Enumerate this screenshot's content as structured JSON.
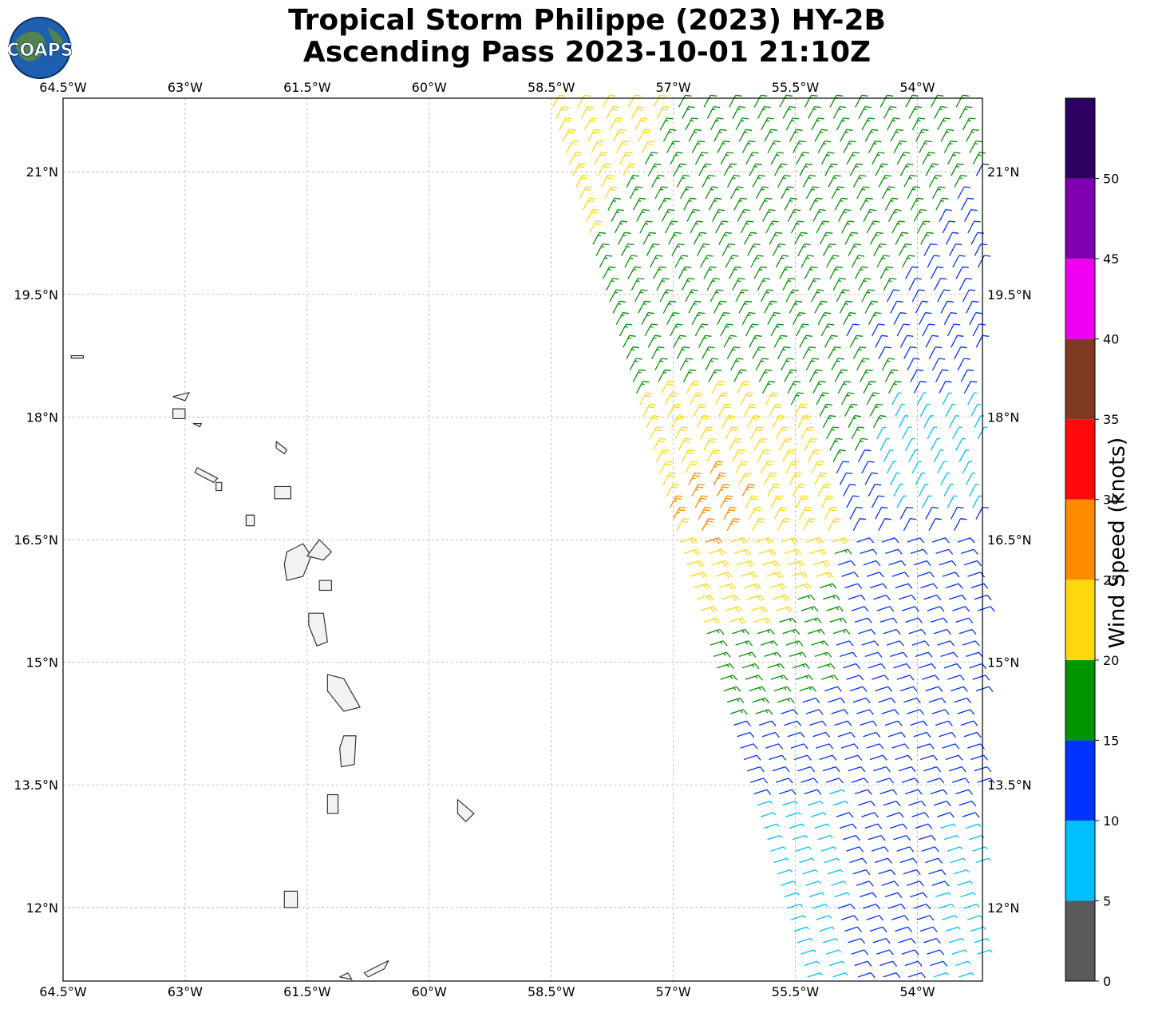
{
  "title": {
    "line1": "Tropical Storm Philippe (2023) HY-2B",
    "line2": "Ascending Pass 2023-10-01 21:10Z"
  },
  "logo": {
    "text": "COAPS",
    "icon": "globe-logo-icon"
  },
  "map": {
    "lon_range": [
      -64.5,
      -53.2
    ],
    "lat_range": [
      11.1,
      21.9
    ],
    "lon_ticks": [
      {
        "value": -64.5,
        "label": "64.5°W"
      },
      {
        "value": -63.0,
        "label": "63°W"
      },
      {
        "value": -61.5,
        "label": "61.5°W"
      },
      {
        "value": -60.0,
        "label": "60°W"
      },
      {
        "value": -58.5,
        "label": "58.5°W"
      },
      {
        "value": -57.0,
        "label": "57°W"
      },
      {
        "value": -55.5,
        "label": "55.5°W"
      },
      {
        "value": -54.0,
        "label": "54°W"
      }
    ],
    "lat_ticks": [
      {
        "value": 21.0,
        "label": "21°N"
      },
      {
        "value": 19.5,
        "label": "19.5°N"
      },
      {
        "value": 18.0,
        "label": "18°N"
      },
      {
        "value": 16.5,
        "label": "16.5°N"
      },
      {
        "value": 15.0,
        "label": "15°N"
      },
      {
        "value": 13.5,
        "label": "13.5°N"
      },
      {
        "value": 12.0,
        "label": "12°N"
      }
    ],
    "gridlines": true
  },
  "colorbar": {
    "label": "Wind Speed (knots)",
    "bins": [
      {
        "min": 0,
        "max": 5,
        "color": "#595959"
      },
      {
        "min": 5,
        "max": 10,
        "color": "#00bfff"
      },
      {
        "min": 10,
        "max": 15,
        "color": "#0033ff"
      },
      {
        "min": 15,
        "max": 20,
        "color": "#009400"
      },
      {
        "min": 20,
        "max": 25,
        "color": "#ffd710"
      },
      {
        "min": 25,
        "max": 30,
        "color": "#ff8c00"
      },
      {
        "min": 30,
        "max": 35,
        "color": "#ff0a0a"
      },
      {
        "min": 35,
        "max": 40,
        "color": "#7f3b22"
      },
      {
        "min": 40,
        "max": 45,
        "color": "#f000f0"
      },
      {
        "min": 45,
        "max": 50,
        "color": "#8000b0"
      },
      {
        "min": 50,
        "max": 55,
        "color": "#2b0060"
      }
    ],
    "tick_labels": [
      "0",
      "5",
      "10",
      "15",
      "20",
      "25",
      "30",
      "35",
      "40",
      "45",
      "50"
    ]
  },
  "islands": [
    {
      "name": "guadeloupe",
      "points": [
        [
          -61.75,
          16.35
        ],
        [
          -61.55,
          16.45
        ],
        [
          -61.45,
          16.3
        ],
        [
          -61.55,
          16.05
        ],
        [
          -61.75,
          16.0
        ],
        [
          -61.78,
          16.2
        ]
      ]
    },
    {
      "name": "grande-terre",
      "points": [
        [
          -61.5,
          16.3
        ],
        [
          -61.35,
          16.5
        ],
        [
          -61.2,
          16.35
        ],
        [
          -61.3,
          16.25
        ]
      ]
    },
    {
      "name": "martinique",
      "points": [
        [
          -61.25,
          14.85
        ],
        [
          -61.05,
          14.8
        ],
        [
          -60.85,
          14.45
        ],
        [
          -61.05,
          14.4
        ],
        [
          -61.25,
          14.65
        ]
      ]
    },
    {
      "name": "dominica",
      "points": [
        [
          -61.48,
          15.6
        ],
        [
          -61.3,
          15.6
        ],
        [
          -61.25,
          15.25
        ],
        [
          -61.38,
          15.2
        ],
        [
          -61.48,
          15.45
        ]
      ]
    },
    {
      "name": "st-lucia",
      "points": [
        [
          -61.05,
          14.1
        ],
        [
          -60.9,
          14.1
        ],
        [
          -60.92,
          13.75
        ],
        [
          -61.08,
          13.72
        ],
        [
          -61.1,
          13.95
        ]
      ]
    },
    {
      "name": "st-vincent",
      "points": [
        [
          -61.25,
          13.38
        ],
        [
          -61.12,
          13.38
        ],
        [
          -61.12,
          13.15
        ],
        [
          -61.25,
          13.15
        ]
      ]
    },
    {
      "name": "grenada",
      "points": [
        [
          -61.78,
          12.2
        ],
        [
          -61.62,
          12.2
        ],
        [
          -61.62,
          12.0
        ],
        [
          -61.78,
          12.0
        ]
      ]
    },
    {
      "name": "barbados",
      "points": [
        [
          -59.65,
          13.32
        ],
        [
          -59.45,
          13.15
        ],
        [
          -59.55,
          13.05
        ],
        [
          -59.65,
          13.15
        ]
      ]
    },
    {
      "name": "montserrat",
      "points": [
        [
          -62.25,
          16.8
        ],
        [
          -62.15,
          16.8
        ],
        [
          -62.15,
          16.67
        ],
        [
          -62.25,
          16.67
        ]
      ]
    },
    {
      "name": "antigua",
      "points": [
        [
          -61.9,
          17.15
        ],
        [
          -61.7,
          17.15
        ],
        [
          -61.7,
          17.0
        ],
        [
          -61.9,
          17.0
        ]
      ]
    },
    {
      "name": "barbuda",
      "points": [
        [
          -61.88,
          17.7
        ],
        [
          -61.75,
          17.6
        ],
        [
          -61.78,
          17.55
        ],
        [
          -61.88,
          17.62
        ]
      ]
    },
    {
      "name": "st-kitts",
      "points": [
        [
          -62.85,
          17.38
        ],
        [
          -62.6,
          17.25
        ],
        [
          -62.65,
          17.2
        ],
        [
          -62.88,
          17.32
        ]
      ]
    },
    {
      "name": "nevis",
      "points": [
        [
          -62.62,
          17.2
        ],
        [
          -62.55,
          17.2
        ],
        [
          -62.55,
          17.1
        ],
        [
          -62.62,
          17.1
        ]
      ]
    },
    {
      "name": "st-martin",
      "points": [
        [
          -63.15,
          18.1
        ],
        [
          -63.0,
          18.1
        ],
        [
          -63.0,
          17.98
        ],
        [
          -63.15,
          17.98
        ]
      ]
    },
    {
      "name": "anguilla",
      "points": [
        [
          -63.15,
          18.25
        ],
        [
          -62.95,
          18.3
        ],
        [
          -63.0,
          18.2
        ]
      ]
    },
    {
      "name": "st-barts",
      "points": [
        [
          -62.9,
          17.92
        ],
        [
          -62.8,
          17.92
        ],
        [
          -62.82,
          17.88
        ]
      ]
    },
    {
      "name": "virgin-gorda",
      "points": [
        [
          -64.4,
          18.75
        ],
        [
          -64.25,
          18.75
        ],
        [
          -64.25,
          18.72
        ],
        [
          -64.4,
          18.72
        ]
      ]
    },
    {
      "name": "tobago",
      "points": [
        [
          -60.8,
          11.2
        ],
        [
          -60.5,
          11.35
        ],
        [
          -60.55,
          11.25
        ],
        [
          -60.75,
          11.15
        ]
      ]
    },
    {
      "name": "trinidad-tip",
      "points": [
        [
          -61.1,
          11.15
        ],
        [
          -61.0,
          11.2
        ],
        [
          -60.95,
          11.12
        ]
      ]
    },
    {
      "name": "marie-galante",
      "points": [
        [
          -61.35,
          16.0
        ],
        [
          -61.2,
          16.0
        ],
        [
          -61.2,
          15.88
        ],
        [
          -61.35,
          15.88
        ]
      ]
    }
  ]
}
